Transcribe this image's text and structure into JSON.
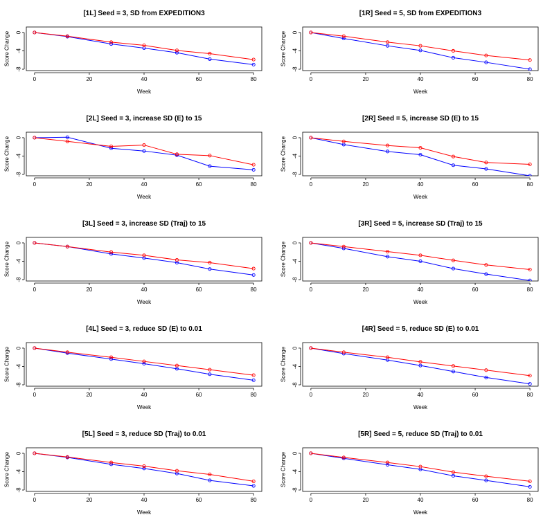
{
  "chart_data": [
    {
      "id": "1L",
      "type": "line",
      "title": "[1L] Seed = 3, SD from EXPEDITION3",
      "xlabel": "Week",
      "ylabel": "Score Change",
      "x": [
        0,
        12,
        28,
        40,
        52,
        64,
        80
      ],
      "xticks": [
        0,
        20,
        40,
        60,
        80
      ],
      "yticks": [
        0,
        -4,
        -8
      ],
      "series": [
        {
          "name": "red",
          "color": "#ff0000",
          "values": [
            0,
            -0.8,
            -2.1,
            -2.8,
            -3.9,
            -4.6,
            -5.9
          ]
        },
        {
          "name": "blue",
          "color": "#0000ff",
          "values": [
            0,
            -0.9,
            -2.5,
            -3.4,
            -4.4,
            -5.8,
            -7.0
          ]
        }
      ]
    },
    {
      "id": "1R",
      "type": "line",
      "title": "[1R] Seed = 5, SD from EXPEDITION3",
      "xlabel": "Week",
      "ylabel": "Score Change",
      "x": [
        0,
        12,
        28,
        40,
        52,
        64,
        80
      ],
      "xticks": [
        0,
        20,
        40,
        60,
        80
      ],
      "yticks": [
        0,
        -4,
        -8
      ],
      "series": [
        {
          "name": "red",
          "color": "#ff0000",
          "values": [
            0,
            -0.8,
            -2.1,
            -2.9,
            -4.0,
            -5.0,
            -6.0
          ]
        },
        {
          "name": "blue",
          "color": "#0000ff",
          "values": [
            0,
            -1.3,
            -2.9,
            -3.9,
            -5.5,
            -6.5,
            -8.0
          ]
        }
      ]
    },
    {
      "id": "2L",
      "type": "line",
      "title": "[2L] Seed = 3, increase SD (E) to 15",
      "xlabel": "Week",
      "ylabel": "Score Change",
      "x": [
        0,
        12,
        28,
        40,
        52,
        64,
        80
      ],
      "xticks": [
        0,
        20,
        40,
        60,
        80
      ],
      "yticks": [
        0,
        -4,
        -8
      ],
      "series": [
        {
          "name": "red",
          "color": "#ff0000",
          "values": [
            0,
            -0.8,
            -1.9,
            -1.6,
            -3.6,
            -3.9,
            -5.9
          ]
        },
        {
          "name": "blue",
          "color": "#0000ff",
          "values": [
            0,
            0.1,
            -2.3,
            -2.9,
            -3.8,
            -6.2,
            -7.0
          ]
        }
      ]
    },
    {
      "id": "2R",
      "type": "line",
      "title": "[2R] Seed = 5, increase SD (E) to 15",
      "xlabel": "Week",
      "ylabel": "Score Change",
      "x": [
        0,
        12,
        28,
        40,
        52,
        64,
        80
      ],
      "xticks": [
        0,
        20,
        40,
        60,
        80
      ],
      "yticks": [
        0,
        -4,
        -8
      ],
      "series": [
        {
          "name": "red",
          "color": "#ff0000",
          "values": [
            0,
            -0.8,
            -1.7,
            -2.2,
            -4.1,
            -5.4,
            -5.8
          ]
        },
        {
          "name": "blue",
          "color": "#0000ff",
          "values": [
            0,
            -1.5,
            -3.0,
            -3.7,
            -6.0,
            -6.8,
            -8.3
          ]
        }
      ]
    },
    {
      "id": "3L",
      "type": "line",
      "title": "[3L] Seed = 3, increase SD (Traj) to 15",
      "xlabel": "Week",
      "ylabel": "Score Change",
      "x": [
        0,
        12,
        28,
        40,
        52,
        64,
        80
      ],
      "xticks": [
        0,
        20,
        40,
        60,
        80
      ],
      "yticks": [
        0,
        -4,
        -8
      ],
      "series": [
        {
          "name": "red",
          "color": "#ff0000",
          "values": [
            0,
            -0.8,
            -2.0,
            -2.7,
            -3.7,
            -4.3,
            -5.6
          ]
        },
        {
          "name": "blue",
          "color": "#0000ff",
          "values": [
            0,
            -0.8,
            -2.4,
            -3.3,
            -4.3,
            -5.7,
            -7.0
          ]
        }
      ]
    },
    {
      "id": "3R",
      "type": "line",
      "title": "[3R] Seed = 5, increase SD (Traj) to 15",
      "xlabel": "Week",
      "ylabel": "Score Change",
      "x": [
        0,
        12,
        28,
        40,
        52,
        64,
        80
      ],
      "xticks": [
        0,
        20,
        40,
        60,
        80
      ],
      "yticks": [
        0,
        -4,
        -8
      ],
      "series": [
        {
          "name": "red",
          "color": "#ff0000",
          "values": [
            0,
            -0.8,
            -1.9,
            -2.7,
            -3.8,
            -4.8,
            -5.8
          ]
        },
        {
          "name": "blue",
          "color": "#0000ff",
          "values": [
            0,
            -1.2,
            -3.0,
            -4.0,
            -5.6,
            -6.8,
            -8.2
          ]
        }
      ]
    },
    {
      "id": "4L",
      "type": "line",
      "title": "[4L] Seed = 3, reduce SD (E) to 0.01",
      "xlabel": "Week",
      "ylabel": "Score Change",
      "x": [
        0,
        12,
        28,
        40,
        52,
        64,
        80
      ],
      "xticks": [
        0,
        20,
        40,
        60,
        80
      ],
      "yticks": [
        0,
        -4,
        -8
      ],
      "series": [
        {
          "name": "red",
          "color": "#ff0000",
          "values": [
            0,
            -0.9,
            -2.0,
            -2.9,
            -3.8,
            -4.7,
            -5.9
          ]
        },
        {
          "name": "blue",
          "color": "#0000ff",
          "values": [
            0,
            -1.1,
            -2.4,
            -3.4,
            -4.5,
            -5.7,
            -7.0
          ]
        }
      ]
    },
    {
      "id": "4R",
      "type": "line",
      "title": "[4R] Seed = 5, reduce SD (E) to 0.01",
      "xlabel": "Week",
      "ylabel": "Score Change",
      "x": [
        0,
        12,
        28,
        40,
        52,
        64,
        80
      ],
      "xticks": [
        0,
        20,
        40,
        60,
        80
      ],
      "yticks": [
        0,
        -4,
        -8
      ],
      "series": [
        {
          "name": "red",
          "color": "#ff0000",
          "values": [
            0,
            -0.9,
            -2.0,
            -3.0,
            -3.9,
            -4.8,
            -6.0
          ]
        },
        {
          "name": "blue",
          "color": "#0000ff",
          "values": [
            0,
            -1.2,
            -2.6,
            -3.8,
            -5.1,
            -6.4,
            -7.8
          ]
        }
      ]
    },
    {
      "id": "5L",
      "type": "line",
      "title": "[5L] Seed = 3, reduce SD (Traj) to 0.01",
      "xlabel": "Week",
      "ylabel": "Score Change",
      "x": [
        0,
        12,
        28,
        40,
        52,
        64,
        80
      ],
      "xticks": [
        0,
        20,
        40,
        60,
        80
      ],
      "yticks": [
        0,
        -4,
        -8
      ],
      "series": [
        {
          "name": "red",
          "color": "#ff0000",
          "values": [
            0,
            -0.8,
            -2.0,
            -2.8,
            -3.8,
            -4.6,
            -6.1
          ]
        },
        {
          "name": "blue",
          "color": "#0000ff",
          "values": [
            0,
            -0.9,
            -2.4,
            -3.3,
            -4.4,
            -5.9,
            -7.1
          ]
        }
      ]
    },
    {
      "id": "5R",
      "type": "line",
      "title": "[5R] Seed = 5, reduce SD (Traj) to 0.01",
      "xlabel": "Week",
      "ylabel": "Score Change",
      "x": [
        0,
        12,
        28,
        40,
        52,
        64,
        80
      ],
      "xticks": [
        0,
        20,
        40,
        60,
        80
      ],
      "yticks": [
        0,
        -4,
        -8
      ],
      "series": [
        {
          "name": "red",
          "color": "#ff0000",
          "values": [
            0,
            -0.9,
            -2.0,
            -2.9,
            -4.1,
            -5.0,
            -6.1
          ]
        },
        {
          "name": "blue",
          "color": "#0000ff",
          "values": [
            0,
            -1.1,
            -2.5,
            -3.5,
            -4.9,
            -5.9,
            -7.3
          ]
        }
      ]
    }
  ]
}
